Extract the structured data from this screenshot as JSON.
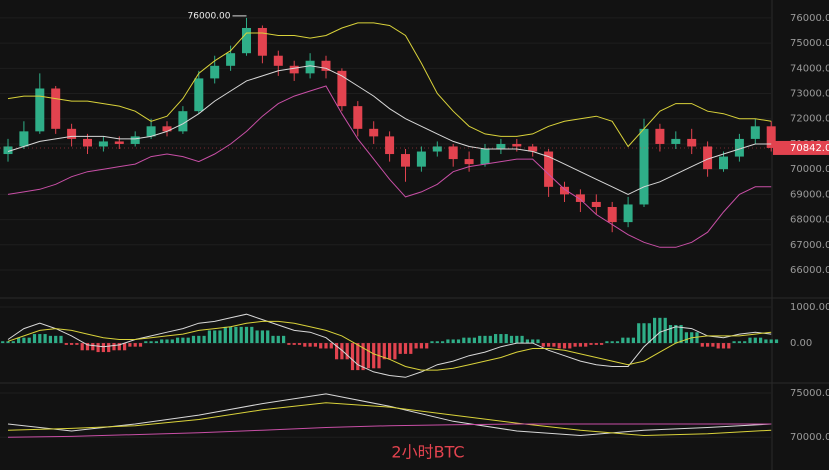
{
  "caption": "2小时BTC",
  "chart_data": [
    {
      "type": "candlestick",
      "up_color": "#2fae88",
      "down_color": "#e2434f",
      "open": [
        70600,
        70900,
        71500,
        73200,
        71600,
        71200,
        70900,
        71100,
        71000,
        71300,
        71700,
        71500,
        72300,
        73600,
        74100,
        74600,
        75600,
        74500,
        74100,
        73800,
        74300,
        73900,
        72500,
        71600,
        71300,
        70600,
        70100,
        70700,
        70900,
        70400,
        70200,
        70800,
        71000,
        70900,
        70700,
        69300,
        69000,
        68700,
        68500,
        67900,
        68600,
        71600,
        71000,
        71200,
        70900,
        70000,
        70500,
        71200,
        71700
      ],
      "high": [
        71200,
        71900,
        73800,
        73300,
        71800,
        71400,
        71300,
        71300,
        71500,
        72000,
        71900,
        72500,
        73900,
        74500,
        74900,
        76000,
        75700,
        74700,
        74300,
        74600,
        74500,
        74000,
        72700,
        71900,
        71500,
        70800,
        70900,
        71100,
        71000,
        70700,
        71000,
        71200,
        71200,
        71000,
        70800,
        69500,
        69200,
        69000,
        68700,
        68900,
        72000,
        71800,
        71500,
        71600,
        71100,
        70700,
        71400,
        72000,
        71900
      ],
      "low": [
        70300,
        70800,
        71400,
        71400,
        70900,
        70600,
        70700,
        70800,
        70900,
        71200,
        71300,
        71400,
        72200,
        73400,
        73900,
        74500,
        74200,
        73700,
        73500,
        73600,
        73600,
        72300,
        71300,
        71000,
        70300,
        69500,
        69900,
        70500,
        70100,
        69900,
        70100,
        70600,
        70700,
        70500,
        68900,
        68700,
        68300,
        68200,
        67500,
        67700,
        68500,
        70700,
        70800,
        70600,
        69700,
        69900,
        70300,
        71000,
        70700
      ],
      "close": [
        70900,
        71500,
        73200,
        71600,
        71200,
        70900,
        71100,
        71000,
        71300,
        71700,
        71500,
        72300,
        73600,
        74100,
        74600,
        75600,
        74500,
        74100,
        73800,
        74300,
        73900,
        72500,
        71600,
        71300,
        70600,
        70100,
        70700,
        70900,
        70400,
        70200,
        70800,
        71000,
        70900,
        70700,
        69300,
        69000,
        68700,
        68500,
        67900,
        68600,
        71600,
        71000,
        71200,
        70900,
        70000,
        70500,
        71200,
        71700,
        70842
      ],
      "series": [
        {
          "color": "#d9d23a",
          "values": [
            72800,
            72900,
            72900,
            72800,
            72700,
            72700,
            72600,
            72500,
            72300,
            71900,
            72100,
            72800,
            73800,
            74300,
            74700,
            75400,
            75400,
            75300,
            75300,
            75200,
            75300,
            75600,
            75800,
            75800,
            75700,
            75300,
            74200,
            73000,
            72300,
            71700,
            71400,
            71300,
            71300,
            71400,
            71700,
            71900,
            72000,
            72100,
            71900,
            70900,
            71600,
            72300,
            72600,
            72600,
            72300,
            72200,
            72000,
            72000,
            71900
          ]
        },
        {
          "color": "#d8d8d8",
          "values": [
            70700,
            70900,
            71100,
            71200,
            71300,
            71300,
            71300,
            71200,
            71200,
            71300,
            71500,
            71800,
            72200,
            72700,
            73100,
            73500,
            73700,
            73900,
            74000,
            74100,
            74000,
            73700,
            73300,
            72900,
            72400,
            72000,
            71700,
            71400,
            71100,
            70900,
            70800,
            70800,
            70800,
            70700,
            70500,
            70200,
            69900,
            69600,
            69300,
            69000,
            69300,
            69500,
            69800,
            70100,
            70400,
            70600,
            70800,
            71000,
            71000
          ]
        },
        {
          "color": "#c84fa6",
          "values": [
            69000,
            69100,
            69200,
            69400,
            69700,
            69900,
            70000,
            70100,
            70200,
            70500,
            70600,
            70500,
            70300,
            70600,
            71000,
            71500,
            72100,
            72600,
            72900,
            73100,
            73300,
            72200,
            71200,
            70400,
            69600,
            68900,
            69100,
            69400,
            69900,
            70100,
            70200,
            70300,
            70400,
            70400,
            69800,
            69200,
            68800,
            68200,
            67800,
            67400,
            67100,
            66900,
            66900,
            67100,
            67500,
            68300,
            69000,
            69300,
            69300
          ]
        }
      ],
      "ylim": [
        64890,
        76710
      ],
      "yticks": [
        {
          "value": 66000,
          "label": "66000.00"
        },
        {
          "value": 67000,
          "label": "67000.00"
        },
        {
          "value": 68000,
          "label": "68000.00"
        },
        {
          "value": 69000,
          "label": "69000.00"
        },
        {
          "value": 70000,
          "label": "70000.00"
        },
        {
          "value": 71000,
          "label": "71000.00"
        },
        {
          "value": 72000,
          "label": "72000.00"
        },
        {
          "value": 73000,
          "label": "73000.00"
        },
        {
          "value": 74000,
          "label": "74000.00"
        },
        {
          "value": 75000,
          "label": "75000.00"
        },
        {
          "value": 76000,
          "label": "76000.00"
        }
      ],
      "high_label": {
        "value": 76000,
        "label": "76000.00"
      },
      "last_price": {
        "value": 70842,
        "label": "70842.00"
      },
      "grid": true
    },
    {
      "type": "macd",
      "up_color": "#2fae88",
      "down_color": "#e2434f",
      "values": [
        50,
        150,
        250,
        200,
        -50,
        -200,
        -250,
        -200,
        -100,
        50,
        100,
        150,
        200,
        350,
        450,
        450,
        350,
        200,
        -50,
        -100,
        -150,
        -450,
        -750,
        -700,
        -450,
        -300,
        -150,
        50,
        100,
        150,
        200,
        250,
        200,
        100,
        -100,
        -150,
        -100,
        -50,
        50,
        150,
        550,
        700,
        500,
        300,
        -100,
        -150,
        50,
        150,
        100
      ],
      "series": [
        {
          "color": "#d8d8d8",
          "values": [
            100,
            400,
            550,
            400,
            200,
            -50,
            -100,
            -50,
            100,
            200,
            300,
            400,
            550,
            600,
            700,
            800,
            650,
            500,
            350,
            300,
            150,
            -200,
            -600,
            -800,
            -900,
            -950,
            -800,
            -600,
            -500,
            -350,
            -250,
            -100,
            0,
            0,
            -200,
            -350,
            -500,
            -600,
            -650,
            -650,
            -100,
            300,
            450,
            400,
            200,
            150,
            250,
            300,
            250
          ]
        },
        {
          "color": "#d9d23a",
          "values": [
            50,
            200,
            350,
            400,
            350,
            250,
            150,
            100,
            100,
            150,
            200,
            250,
            350,
            400,
            450,
            550,
            600,
            600,
            550,
            450,
            350,
            200,
            -50,
            -300,
            -450,
            -650,
            -750,
            -750,
            -700,
            -600,
            -500,
            -400,
            -250,
            -150,
            -150,
            -200,
            -300,
            -400,
            -500,
            -600,
            -500,
            -250,
            0,
            150,
            200,
            200,
            200,
            250,
            300
          ]
        }
      ],
      "ylim": [
        -1080,
        1250
      ],
      "yticks": [
        {
          "value": 0,
          "label": "0.00"
        },
        {
          "value": 1000,
          "label": "1000.00"
        }
      ],
      "grid": true
    },
    {
      "type": "line",
      "x": [
        0,
        4,
        8,
        12,
        16,
        20,
        24,
        28,
        32,
        36,
        40,
        44,
        48
      ],
      "series": [
        {
          "color": "#d8d8d8",
          "values": [
            71500,
            70700,
            71500,
            72500,
            73800,
            74900,
            73500,
            71800,
            70700,
            70200,
            70800,
            71100,
            71500
          ]
        },
        {
          "color": "#d9d23a",
          "values": [
            70800,
            71000,
            71300,
            72000,
            73100,
            73900,
            73400,
            72500,
            71600,
            70800,
            70200,
            70400,
            70800
          ]
        },
        {
          "color": "#c84fa6",
          "values": [
            70000,
            70100,
            70300,
            70500,
            70800,
            71100,
            71300,
            71400,
            71500,
            71500,
            71500,
            71500,
            71500
          ]
        }
      ],
      "ylim": [
        66300,
        75900
      ],
      "yticks": [
        {
          "value": 70000,
          "label": "70000.00"
        },
        {
          "value": 75000,
          "label": "75000.00"
        }
      ],
      "grid": true
    }
  ]
}
